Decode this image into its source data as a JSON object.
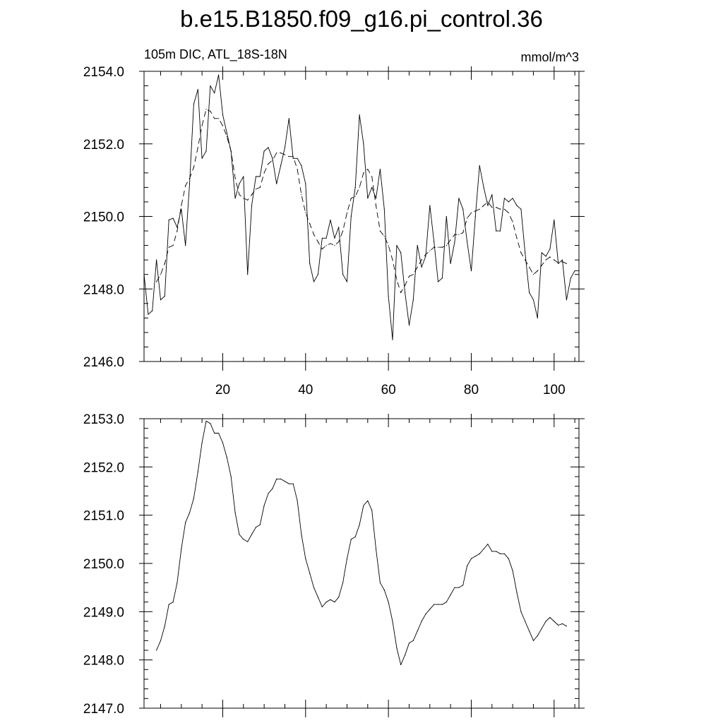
{
  "title": "b.e15.B1850.f09_g16.pi_control.36",
  "chart_data": [
    {
      "type": "line",
      "title": "",
      "left_label": "105m DIC, ATL_18S-18N",
      "right_label": "mmol/m^3",
      "xlim": [
        1,
        106
      ],
      "ylim": [
        2146,
        2154
      ],
      "x_ticks": [
        20,
        40,
        60,
        80,
        100
      ],
      "x_tick_labels": [
        "20",
        "40",
        "60",
        "80",
        "100"
      ],
      "y_ticks": [
        2146,
        2148,
        2150,
        2152,
        2154
      ],
      "y_tick_labels": [
        "2146.0",
        "2148.0",
        "2150.0",
        "2152.0",
        "2154.0"
      ],
      "series": [
        {
          "style": "solid",
          "x": [
            1,
            2,
            3,
            4,
            5,
            6,
            7,
            8,
            9,
            10,
            11,
            12,
            13,
            14,
            15,
            16,
            17,
            18,
            19,
            20,
            21,
            22,
            23,
            24,
            25,
            26,
            27,
            28,
            29,
            30,
            31,
            32,
            33,
            34,
            35,
            36,
            37,
            38,
            39,
            40,
            41,
            42,
            43,
            44,
            45,
            46,
            47,
            48,
            49,
            50,
            51,
            52,
            53,
            54,
            55,
            56,
            57,
            58,
            59,
            60,
            61,
            62,
            63,
            64,
            65,
            66,
            67,
            68,
            69,
            70,
            71,
            72,
            73,
            74,
            75,
            76,
            77,
            78,
            79,
            80,
            81,
            82,
            83,
            84,
            85,
            86,
            87,
            88,
            89,
            90,
            91,
            92,
            93,
            94,
            95,
            96,
            97,
            98,
            99,
            100,
            101,
            102,
            103,
            104,
            105,
            106
          ],
          "values": [
            2148.4,
            2147.3,
            2147.4,
            2148.8,
            2147.7,
            2147.8,
            2149.9,
            2149.95,
            2149.7,
            2150.2,
            2149.2,
            2150.9,
            2153.1,
            2153.5,
            2151.6,
            2151.8,
            2153.6,
            2153.4,
            2153.9,
            2152.8,
            2152.3,
            2151.8,
            2150.5,
            2150.9,
            2151.1,
            2148.4,
            2150.3,
            2151.1,
            2151.1,
            2151.8,
            2151.9,
            2151.6,
            2150.9,
            2151.4,
            2151.9,
            2152.7,
            2151.6,
            2151.6,
            2151.4,
            2150.9,
            2148.7,
            2148.2,
            2148.4,
            2149.4,
            2149.4,
            2149.9,
            2149.4,
            2149.7,
            2148.4,
            2148.2,
            2150.0,
            2150.8,
            2152.8,
            2152.0,
            2150.5,
            2150.8,
            2150.5,
            2151.3,
            2150.2,
            2147.8,
            2146.6,
            2149.2,
            2149.0,
            2147.9,
            2147.0,
            2147.7,
            2149.2,
            2148.6,
            2148.9,
            2150.3,
            2149.3,
            2148.2,
            2148.3,
            2150.0,
            2148.7,
            2149.3,
            2150.5,
            2150.2,
            2149.3,
            2148.5,
            2150.0,
            2151.4,
            2150.8,
            2150.3,
            2150.6,
            2149.6,
            2149.6,
            2150.5,
            2150.4,
            2150.5,
            2150.3,
            2150.2,
            2149.0,
            2147.9,
            2147.7,
            2147.2,
            2149.0,
            2148.9,
            2149.1,
            2149.9,
            2148.7,
            2148.8,
            2147.7,
            2148.3,
            2148.5,
            2148.5
          ]
        },
        {
          "style": "dashed",
          "x": [
            4,
            5,
            6,
            7,
            8,
            9,
            10,
            11,
            12,
            13,
            14,
            15,
            16,
            17,
            18,
            19,
            20,
            21,
            22,
            23,
            24,
            25,
            26,
            27,
            28,
            29,
            30,
            31,
            32,
            33,
            34,
            35,
            36,
            37,
            38,
            39,
            40,
            41,
            42,
            43,
            44,
            45,
            46,
            47,
            48,
            49,
            50,
            51,
            52,
            53,
            54,
            55,
            56,
            57,
            58,
            59,
            60,
            61,
            62,
            63,
            64,
            65,
            66,
            67,
            68,
            69,
            70,
            71,
            72,
            73,
            74,
            75,
            76,
            77,
            78,
            79,
            80,
            81,
            82,
            83,
            84,
            85,
            86,
            87,
            88,
            89,
            90,
            91,
            92,
            93,
            94,
            95,
            96,
            97,
            98,
            99,
            100,
            101,
            102,
            103
          ],
          "values": [
            2148.2,
            2148.4,
            2148.7,
            2149.15,
            2149.2,
            2149.6,
            2150.3,
            2150.85,
            2151.05,
            2151.35,
            2151.9,
            2152.5,
            2152.95,
            2152.9,
            2152.7,
            2152.7,
            2152.5,
            2152.2,
            2151.8,
            2151.05,
            2150.6,
            2150.5,
            2150.45,
            2150.6,
            2150.75,
            2150.8,
            2151.2,
            2151.45,
            2151.55,
            2151.75,
            2151.75,
            2151.7,
            2151.65,
            2151.65,
            2151.3,
            2150.6,
            2150.1,
            2149.8,
            2149.5,
            2149.3,
            2149.1,
            2149.2,
            2149.25,
            2149.2,
            2149.3,
            2149.6,
            2150.1,
            2150.5,
            2150.55,
            2150.8,
            2151.2,
            2151.3,
            2151.1,
            2150.3,
            2149.6,
            2149.45,
            2149.2,
            2148.8,
            2148.25,
            2147.9,
            2148.1,
            2148.35,
            2148.4,
            2148.6,
            2148.8,
            2148.95,
            2149.05,
            2149.15,
            2149.15,
            2149.15,
            2149.2,
            2149.35,
            2149.5,
            2149.5,
            2149.55,
            2149.95,
            2150.1,
            2150.15,
            2150.2,
            2150.3,
            2150.4,
            2150.25,
            2150.25,
            2150.2,
            2150.2,
            2150.1,
            2149.85,
            2149.4,
            2149.0,
            2148.8,
            2148.6,
            2148.4,
            2148.5,
            2148.65,
            2148.8,
            2148.88,
            2148.8,
            2148.72,
            2148.75,
            2148.7
          ]
        }
      ]
    },
    {
      "type": "line",
      "title": "",
      "xlim": [
        1,
        106
      ],
      "ylim": [
        2147,
        2153
      ],
      "x_ticks": [
        20,
        40,
        60,
        80,
        100
      ],
      "y_ticks": [
        2147,
        2148,
        2149,
        2150,
        2151,
        2152,
        2153
      ],
      "y_tick_labels": [
        "2147.0",
        "2148.0",
        "2149.0",
        "2150.0",
        "2151.0",
        "2152.0",
        "2153.0"
      ],
      "series": [
        {
          "style": "solid",
          "x": [
            4,
            5,
            6,
            7,
            8,
            9,
            10,
            11,
            12,
            13,
            14,
            15,
            16,
            17,
            18,
            19,
            20,
            21,
            22,
            23,
            24,
            25,
            26,
            27,
            28,
            29,
            30,
            31,
            32,
            33,
            34,
            35,
            36,
            37,
            38,
            39,
            40,
            41,
            42,
            43,
            44,
            45,
            46,
            47,
            48,
            49,
            50,
            51,
            52,
            53,
            54,
            55,
            56,
            57,
            58,
            59,
            60,
            61,
            62,
            63,
            64,
            65,
            66,
            67,
            68,
            69,
            70,
            71,
            72,
            73,
            74,
            75,
            76,
            77,
            78,
            79,
            80,
            81,
            82,
            83,
            84,
            85,
            86,
            87,
            88,
            89,
            90,
            91,
            92,
            93,
            94,
            95,
            96,
            97,
            98,
            99,
            100,
            101,
            102,
            103
          ],
          "values": [
            2148.2,
            2148.4,
            2148.7,
            2149.15,
            2149.2,
            2149.6,
            2150.3,
            2150.85,
            2151.05,
            2151.35,
            2151.9,
            2152.5,
            2152.95,
            2152.9,
            2152.7,
            2152.7,
            2152.5,
            2152.2,
            2151.8,
            2151.05,
            2150.6,
            2150.5,
            2150.45,
            2150.6,
            2150.75,
            2150.8,
            2151.2,
            2151.45,
            2151.55,
            2151.75,
            2151.75,
            2151.7,
            2151.65,
            2151.65,
            2151.3,
            2150.6,
            2150.1,
            2149.8,
            2149.5,
            2149.3,
            2149.1,
            2149.2,
            2149.25,
            2149.2,
            2149.3,
            2149.6,
            2150.1,
            2150.5,
            2150.55,
            2150.8,
            2151.2,
            2151.3,
            2151.1,
            2150.3,
            2149.6,
            2149.45,
            2149.2,
            2148.8,
            2148.25,
            2147.9,
            2148.1,
            2148.35,
            2148.4,
            2148.6,
            2148.8,
            2148.95,
            2149.05,
            2149.15,
            2149.15,
            2149.15,
            2149.2,
            2149.35,
            2149.5,
            2149.5,
            2149.55,
            2149.95,
            2150.1,
            2150.15,
            2150.2,
            2150.3,
            2150.4,
            2150.25,
            2150.25,
            2150.2,
            2150.2,
            2150.1,
            2149.85,
            2149.4,
            2149.0,
            2148.8,
            2148.6,
            2148.4,
            2148.5,
            2148.65,
            2148.8,
            2148.88,
            2148.8,
            2148.72,
            2148.75,
            2148.7
          ]
        }
      ]
    }
  ]
}
